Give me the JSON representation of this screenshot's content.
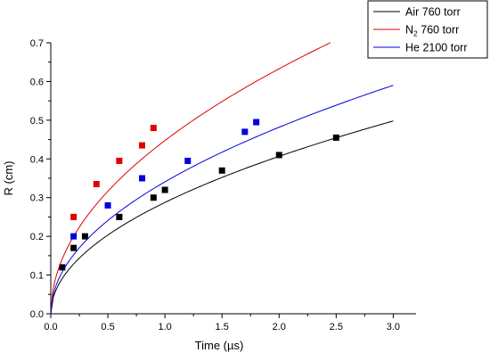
{
  "chart_data": {
    "type": "scatter",
    "title": "",
    "xlabel": "Time (µs)",
    "ylabel": "R (cm)",
    "xlim": [
      0.0,
      3.2
    ],
    "ylim": [
      0.0,
      0.7
    ],
    "x_ticks": [
      "0.0",
      "0.5",
      "1.0",
      "1.5",
      "2.0",
      "2.5",
      "3.0"
    ],
    "y_ticks": [
      "0.0",
      "0.1",
      "0.2",
      "0.3",
      "0.4",
      "0.5",
      "0.6",
      "0.7"
    ],
    "grid": false,
    "legend_position": "top-right",
    "series": [
      {
        "name": "Air 760 torr",
        "legend_main": "Air 760 torr",
        "legend_sub": "",
        "legend_rest": "",
        "color": "#000000",
        "points": [
          [
            0.1,
            0.12
          ],
          [
            0.2,
            0.17
          ],
          [
            0.3,
            0.2
          ],
          [
            0.6,
            0.25
          ],
          [
            0.9,
            0.3
          ],
          [
            1.0,
            0.32
          ],
          [
            1.5,
            0.37
          ],
          [
            2.0,
            0.41
          ],
          [
            2.5,
            0.455
          ]
        ],
        "fit": {
          "a": 0.2875,
          "b": 0.5,
          "x_end": 3.0
        }
      },
      {
        "name": "N2 760 torr",
        "legend_main": "N",
        "legend_sub": "2",
        "legend_rest": " 760 torr",
        "color": "#e00000",
        "points": [
          [
            0.2,
            0.25
          ],
          [
            0.4,
            0.335
          ],
          [
            0.6,
            0.395
          ],
          [
            0.8,
            0.435
          ],
          [
            0.9,
            0.48
          ]
        ],
        "fit": {
          "a": 0.4475,
          "b": 0.5,
          "x_end": 2.45
        }
      },
      {
        "name": "He 2100 torr",
        "legend_main": "He 2100 torr",
        "legend_sub": "",
        "legend_rest": "",
        "color": "#0000e0",
        "points": [
          [
            0.2,
            0.2
          ],
          [
            0.5,
            0.28
          ],
          [
            0.8,
            0.35
          ],
          [
            1.2,
            0.395
          ],
          [
            1.7,
            0.47
          ],
          [
            1.8,
            0.495
          ]
        ],
        "fit": {
          "a": 0.3407,
          "b": 0.5,
          "x_end": 3.0
        }
      }
    ]
  }
}
